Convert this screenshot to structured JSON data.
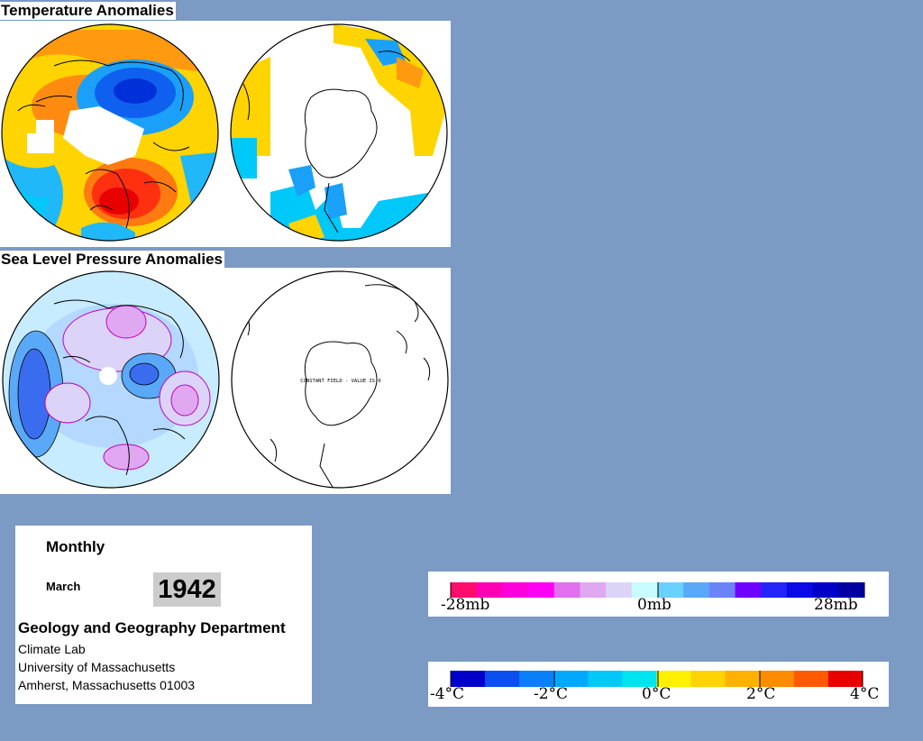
{
  "sections": {
    "temperature_title": "Temperature Anomalies",
    "pressure_title": "Sea Level Pressure Anomalies",
    "constant_field_note": "CONSTANT FIELD - VALUE IS 0"
  },
  "info": {
    "period": "Monthly",
    "month": "March",
    "year": "1942",
    "department": "Geology and Geography Department",
    "lines": [
      "Climate Lab",
      "University of Massachusetts",
      "Amherst, Massachusetts 01003"
    ]
  },
  "pressure_legend": {
    "labels": [
      "-28mb",
      "0mb",
      "28mb"
    ],
    "colors": [
      "#ff0c6c",
      "#ff00b4",
      "#ff00dc",
      "#ff00f4",
      "#e070f0",
      "#e0a8f0",
      "#dcd4f8",
      "#c8fcff",
      "#6ad0ff",
      "#5aa8f8",
      "#6a84f8",
      "#7000ff",
      "#2424f8",
      "#0a0ae8",
      "#0000c8",
      "#0000a0"
    ]
  },
  "temperature_legend": {
    "labels": [
      "-4°C",
      "-2°C",
      "0°C",
      "2°C",
      "4°C"
    ],
    "colors": [
      "#0000c8",
      "#0a50f0",
      "#0a80f8",
      "#00a8ff",
      "#00c8f8",
      "#00e4f0",
      "#fff000",
      "#ffd200",
      "#ffb000",
      "#ff8c00",
      "#ff5a00",
      "#e80000"
    ]
  }
}
